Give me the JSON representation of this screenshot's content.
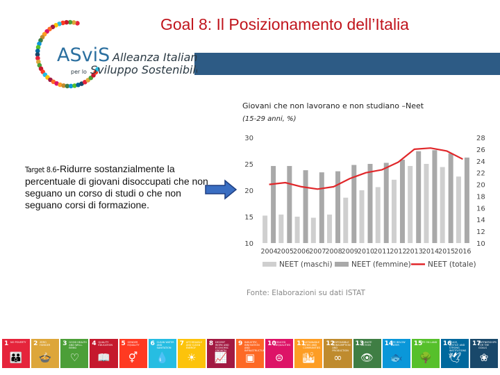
{
  "page": {
    "title": "Goal 8: Il Posizionamento dell’Italia",
    "logo": {
      "name": "ASviS",
      "line1": "Alleanza Italiana",
      "line2_prefix": "per lo",
      "line2": "Sviluppo Sostenibile"
    },
    "target_label": "Target 8.6",
    "target_text": "-Ridurre sostanzialmente la percentuale di giovani disoccupati che non seguano un corso di studi o che non seguano corsi di formazione.",
    "source": "Fonte: Elaborazioni su dati ISTAT",
    "colors": {
      "title": "#c0141c",
      "band": "#2d5b85"
    }
  },
  "chart_data": {
    "type": "bar",
    "title": "Giovani che non lavorano e non studiano –Neet",
    "subtitle": "(15-29 anni, %)",
    "categories": [
      "2004",
      "2005",
      "2006",
      "2007",
      "2008",
      "2009",
      "2010",
      "2011",
      "2012",
      "2013",
      "2014",
      "2015",
      "2016"
    ],
    "series": [
      {
        "name": "NEET (maschi)",
        "type": "bar",
        "axis": "left",
        "color": "#cfcfcf",
        "values": [
          15.2,
          15.4,
          15.0,
          14.8,
          15.4,
          18.6,
          20.0,
          20.6,
          22.0,
          24.6,
          25.0,
          24.4,
          22.6
        ]
      },
      {
        "name": "NEET (femmine)",
        "type": "bar",
        "axis": "left",
        "color": "#a9a9a9",
        "values": [
          24.6,
          24.6,
          23.8,
          23.4,
          23.6,
          24.8,
          25.0,
          25.2,
          25.8,
          27.4,
          27.6,
          27.0,
          26.2
        ]
      },
      {
        "name": "NEET (totale)",
        "type": "line",
        "axis": "right",
        "color": "#e0272a",
        "values": [
          20.0,
          20.3,
          19.6,
          19.2,
          19.6,
          21.0,
          22.0,
          22.5,
          23.8,
          26.0,
          26.2,
          25.7,
          24.3
        ]
      }
    ],
    "y_left": {
      "ticks": [
        "30",
        "25",
        "20",
        "15",
        "10"
      ],
      "min": 10,
      "max": 30
    },
    "y_right": {
      "ticks": [
        "28",
        "26",
        "24",
        "22",
        "20",
        "18",
        "16",
        "14",
        "12",
        "10"
      ],
      "min": 10,
      "max": 28
    },
    "grid": false,
    "legend": "bottom"
  },
  "sdg": [
    {
      "num": "1",
      "label": "No poverty",
      "icon": "family-icon",
      "glyph": "👪",
      "color": "#e5243b"
    },
    {
      "num": "2",
      "label": "Zero hunger",
      "icon": "bowl-icon",
      "glyph": "🍲",
      "color": "#dda63a"
    },
    {
      "num": "3",
      "label": "Good health and well-being",
      "icon": "heartbeat-icon",
      "glyph": "♡",
      "color": "#4c9f38"
    },
    {
      "num": "4",
      "label": "Quality education",
      "icon": "book-icon",
      "glyph": "📖",
      "color": "#c5192d"
    },
    {
      "num": "5",
      "label": "Gender equality",
      "icon": "gender-icon",
      "glyph": "⚥",
      "color": "#ff3a21"
    },
    {
      "num": "6",
      "label": "Clean water and sanitation",
      "icon": "water-icon",
      "glyph": "💧",
      "color": "#26bde2"
    },
    {
      "num": "7",
      "label": "Affordable and clean energy",
      "icon": "sun-icon",
      "glyph": "☀",
      "color": "#fcc30b"
    },
    {
      "num": "8",
      "label": "Decent work and economic growth",
      "icon": "growth-chart-icon",
      "glyph": "📈",
      "color": "#a21942"
    },
    {
      "num": "9",
      "label": "Industry, innovation and infrastructure",
      "icon": "cubes-icon",
      "glyph": "▣",
      "color": "#fd6925"
    },
    {
      "num": "10",
      "label": "Reduced inequalities",
      "icon": "equal-icon",
      "glyph": "⊜",
      "color": "#dd1367"
    },
    {
      "num": "11",
      "label": "Sustainable cities and communities",
      "icon": "city-icon",
      "glyph": "🏙",
      "color": "#fd9d24"
    },
    {
      "num": "12",
      "label": "Responsible consumption and production",
      "icon": "infinity-icon",
      "glyph": "∞",
      "color": "#bf8b2e"
    },
    {
      "num": "13",
      "label": "Climate action",
      "icon": "eye-globe-icon",
      "glyph": "👁",
      "color": "#3f7e44"
    },
    {
      "num": "14",
      "label": "Life below water",
      "icon": "fish-icon",
      "glyph": "🐟",
      "color": "#0a97d9"
    },
    {
      "num": "15",
      "label": "Life on land",
      "icon": "tree-icon",
      "glyph": "🌳",
      "color": "#56c02b"
    },
    {
      "num": "16",
      "label": "Peace, justice and strong institutions",
      "icon": "dove-icon",
      "glyph": "🕊",
      "color": "#00689d"
    },
    {
      "num": "17",
      "label": "Partnerships for the goals",
      "icon": "flower-icon",
      "glyph": "❀",
      "color": "#19486a"
    }
  ]
}
